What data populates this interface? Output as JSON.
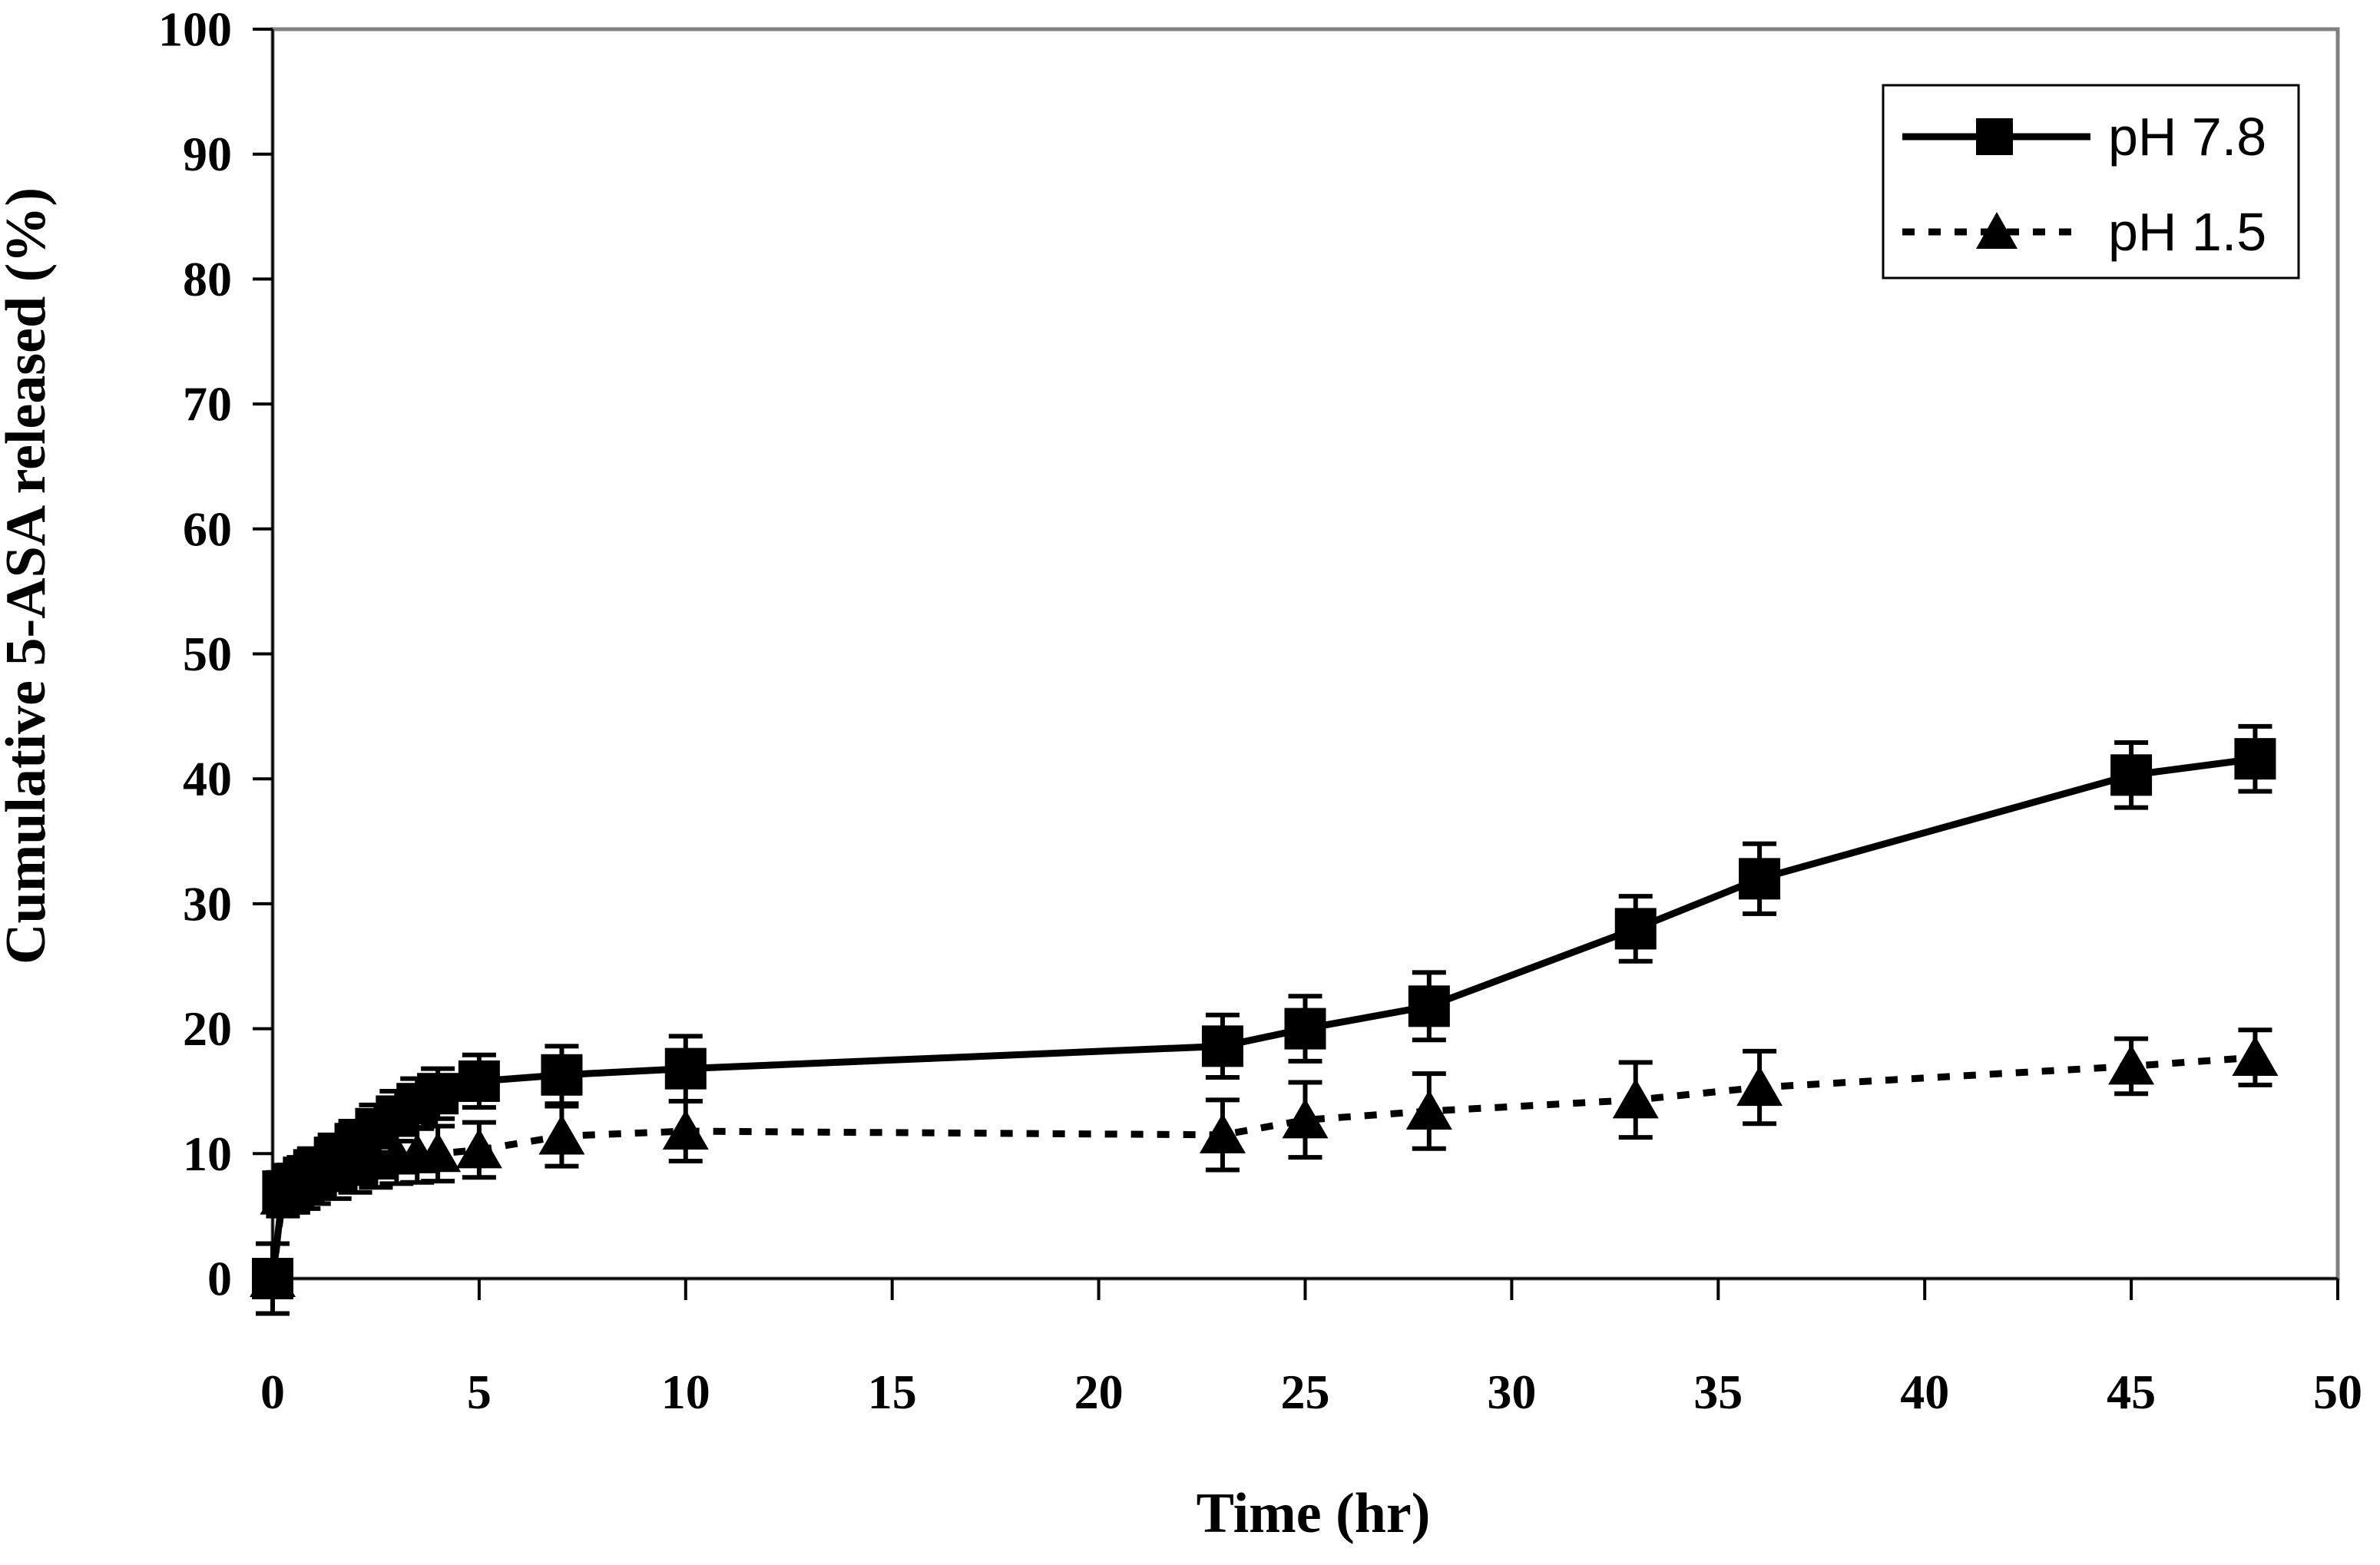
{
  "figure": {
    "background_color": "#ffffff",
    "plot_border_color": "#808080",
    "axis_color": "#000000",
    "series_color": "#000000"
  },
  "chart_data": {
    "type": "line",
    "title": "",
    "xlabel": "Time (hr)",
    "ylabel": "Cumulative 5-ASA released (%)",
    "xlim": [
      0,
      50
    ],
    "ylim": [
      0,
      100
    ],
    "x_ticks": [
      0,
      5,
      10,
      15,
      20,
      25,
      30,
      35,
      40,
      45,
      50
    ],
    "y_ticks": [
      0,
      10,
      20,
      30,
      40,
      50,
      60,
      70,
      80,
      90,
      100
    ],
    "grid": false,
    "legend_position": "top-right",
    "series": [
      {
        "name": "pH 7.8",
        "color": "#000000",
        "line": "solid",
        "marker": "square",
        "x": [
          0,
          0.25,
          0.5,
          0.75,
          1,
          1.5,
          2,
          2.5,
          3,
          3.5,
          4,
          5,
          7,
          10,
          23,
          25,
          28,
          33,
          36,
          45,
          48
        ],
        "y": [
          0,
          7.0,
          7.6,
          8.1,
          8.7,
          9.7,
          10.8,
          12.0,
          13.0,
          14.0,
          14.8,
          15.8,
          16.3,
          16.8,
          18.6,
          20.0,
          21.8,
          28.0,
          32.0,
          40.3,
          41.6
        ],
        "err": [
          2.8,
          1.5,
          1.5,
          1.6,
          1.7,
          1.8,
          1.8,
          1.9,
          2.0,
          2.0,
          2.0,
          2.1,
          2.3,
          2.6,
          2.5,
          2.6,
          2.7,
          2.6,
          2.8,
          2.6,
          2.6
        ]
      },
      {
        "name": "pH 1.5",
        "color": "#000000",
        "line": "dotted",
        "marker": "triangle",
        "x": [
          0,
          0.25,
          0.5,
          0.75,
          1,
          1.5,
          2,
          2.5,
          3,
          3.5,
          4,
          5,
          7,
          10,
          23,
          25,
          28,
          33,
          36,
          45,
          48
        ],
        "y": [
          0,
          6.6,
          7.0,
          7.4,
          7.9,
          8.4,
          8.9,
          9.4,
          9.8,
          9.9,
          10.0,
          10.3,
          11.4,
          11.8,
          11.5,
          12.7,
          13.4,
          14.3,
          15.3,
          17.0,
          17.7
        ],
        "err": [
          2.8,
          1.6,
          1.7,
          1.8,
          1.9,
          2.0,
          2.0,
          2.1,
          2.2,
          2.2,
          2.2,
          2.2,
          2.4,
          2.4,
          2.8,
          3.0,
          3.0,
          3.0,
          2.9,
          2.2,
          2.2
        ]
      }
    ]
  }
}
